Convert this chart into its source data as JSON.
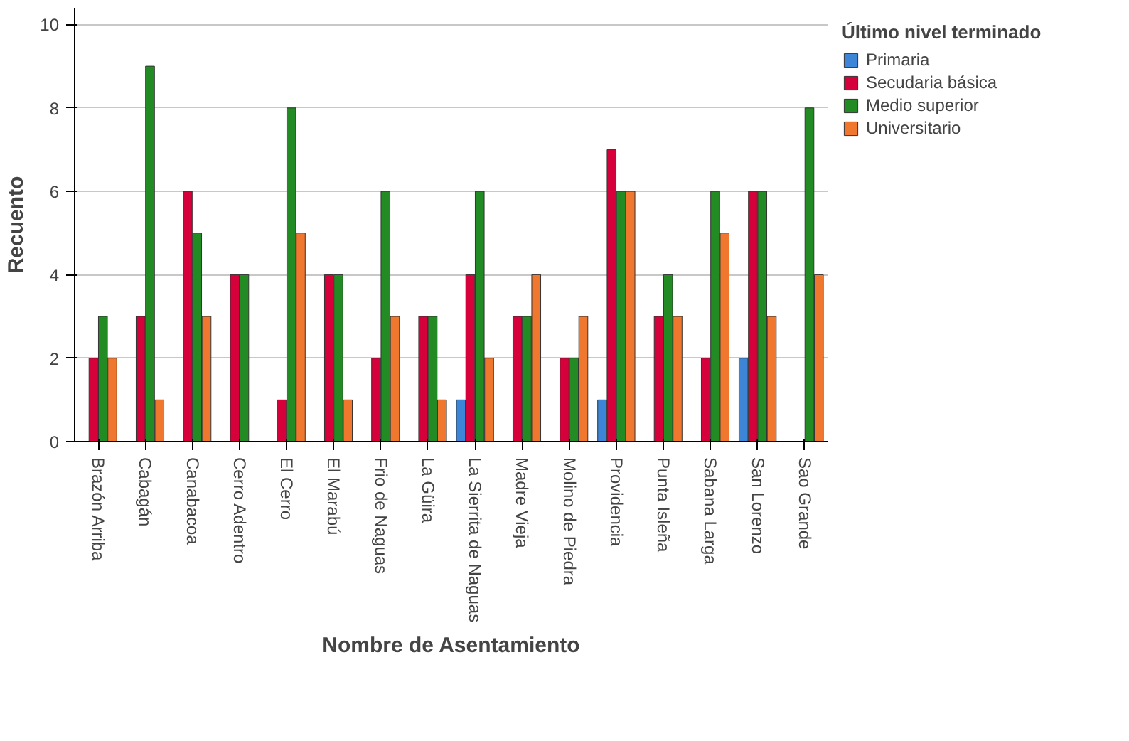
{
  "chart_data": {
    "type": "bar",
    "xlabel": "Nombre de Asentamiento",
    "ylabel": "Recuento",
    "legend_title": "Último nivel terminado",
    "categories": [
      "Brazón Arriba",
      "Cabagán",
      "Canabacoa",
      "Cerro Adentro",
      "El Cerro",
      "El Marabú",
      "Frio de Naguas",
      "La Güira",
      "La Sierrita de Naguas",
      "Madre Vieja",
      "Molino de Piedra",
      "Providencia",
      "Punta Isleña",
      "Sabana Larga",
      "San Lorenzo",
      "Sao Grande"
    ],
    "series": [
      {
        "name": "Primaria",
        "color": "#3d85d6",
        "values": [
          null,
          null,
          null,
          null,
          null,
          null,
          null,
          null,
          1,
          null,
          null,
          1,
          null,
          null,
          2,
          null
        ]
      },
      {
        "name": "Secudaria básica",
        "color": "#d6003a",
        "values": [
          2,
          3,
          6,
          4,
          1,
          4,
          2,
          3,
          4,
          3,
          2,
          7,
          3,
          2,
          6,
          null
        ]
      },
      {
        "name": "Medio superior",
        "color": "#238b23",
        "values": [
          3,
          9,
          5,
          4,
          8,
          4,
          6,
          3,
          6,
          3,
          2,
          6,
          4,
          6,
          6,
          8
        ]
      },
      {
        "name": "Universitario",
        "color": "#f0772e",
        "values": [
          2,
          1,
          3,
          null,
          5,
          1,
          3,
          1,
          2,
          4,
          3,
          6,
          3,
          5,
          3,
          4
        ]
      }
    ],
    "ylim": [
      0,
      10.4
    ],
    "yticks": [
      0,
      2,
      4,
      6,
      8,
      10
    ],
    "grid": "y",
    "legend": "top right"
  }
}
